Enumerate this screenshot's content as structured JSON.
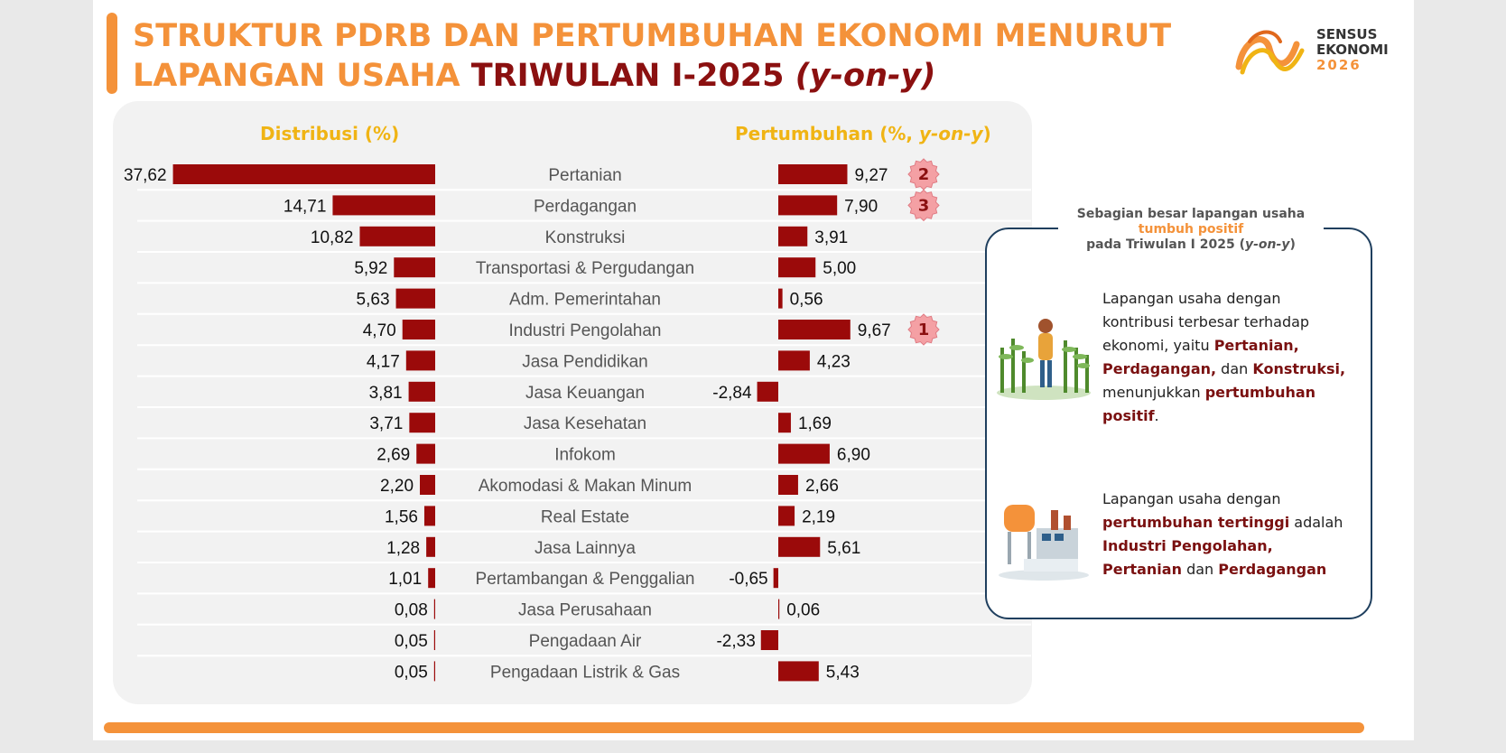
{
  "title": {
    "line1": "STRUKTUR PDRB DAN PERTUMBUHAN EKONOMI MENURUT",
    "line2_orange": "LAPANGAN USAHA",
    "line2_red": "TRIWULAN I-2025",
    "line2_italic": "(y-on-y)"
  },
  "logo": {
    "line1": "SENSUS",
    "line2": "EKONOMI",
    "line3": "2026"
  },
  "colors": {
    "bar": "#9b0a0a",
    "accent": "#f4923a",
    "header": "#f0b414",
    "rank_badge": "#f4a0a4"
  },
  "chart_data": {
    "type": "bar",
    "orientation": "horizontal",
    "left_header": "Distribusi (%)",
    "right_header_prefix": "Pertumbuhan (%, ",
    "right_header_italic": "y-on-y",
    "right_header_suffix": ")",
    "categories": [
      "Pertanian",
      "Perdagangan",
      "Konstruksi",
      "Transportasi & Pergudangan",
      "Adm. Pemerintahan",
      "Industri Pengolahan",
      "Jasa Pendidikan",
      "Jasa Keuangan",
      "Jasa Kesehatan",
      "Infokom",
      "Akomodasi & Makan Minum",
      "Real Estate",
      "Jasa Lainnya",
      "Pertambangan & Penggalian",
      "Jasa Perusahaan",
      "Pengadaan Air",
      "Pengadaan Listrik & Gas"
    ],
    "series": [
      {
        "name": "Distribusi (%)",
        "values": [
          37.62,
          14.71,
          10.82,
          5.92,
          5.63,
          4.7,
          4.17,
          3.81,
          3.71,
          2.69,
          2.2,
          1.56,
          1.28,
          1.01,
          0.08,
          0.05,
          0.05
        ],
        "labels": [
          "37,62",
          "14,71",
          "10,82",
          "5,92",
          "5,63",
          "4,70",
          "4,17",
          "3,81",
          "3,71",
          "2,69",
          "2,20",
          "1,56",
          "1,28",
          "1,01",
          "0,08",
          "0,05",
          "0,05"
        ]
      },
      {
        "name": "Pertumbuhan (%, y-on-y)",
        "values": [
          9.27,
          7.9,
          3.91,
          5.0,
          0.56,
          9.67,
          4.23,
          -2.84,
          1.69,
          6.9,
          2.66,
          2.19,
          5.61,
          -0.65,
          0.06,
          -2.33,
          5.43
        ],
        "labels": [
          "9,27",
          "7,90",
          "3,91",
          "5,00",
          "0,56",
          "9,67",
          "4,23",
          "-2,84",
          "1,69",
          "6,90",
          "2,66",
          "2,19",
          "5,61",
          "-0,65",
          "0,06",
          "-2,33",
          "5,43"
        ]
      }
    ],
    "rank_badges": [
      {
        "category": "Pertanian",
        "rank": "2"
      },
      {
        "category": "Perdagangan",
        "rank": "3"
      },
      {
        "category": "Industri Pengolahan",
        "rank": "1"
      }
    ]
  },
  "info": {
    "caption_line1": "Sebagian besar lapangan usaha",
    "caption_line2": "tumbuh positif",
    "caption_line3_prefix": "pada Triwulan I 2025 (",
    "caption_line3_italic": "y-on-y",
    "caption_line3_suffix": ")",
    "p1": {
      "t1": "Lapangan usaha dengan kontribusi terbesar terhadap ekonomi, yaitu ",
      "b1": "Pertanian, Perdagangan,",
      "t2": " dan ",
      "b2": "Konstruksi,",
      "t3": " menunjukkan ",
      "b3": "pertumbuhan positif",
      "t4": "."
    },
    "p2": {
      "t1": "Lapangan usaha dengan ",
      "b1": "pertumbuhan tertinggi",
      "t2": " adalah ",
      "b2": "Industri Pengolahan, Pertanian",
      "t3": " dan ",
      "b3": "Perdagangan"
    }
  }
}
